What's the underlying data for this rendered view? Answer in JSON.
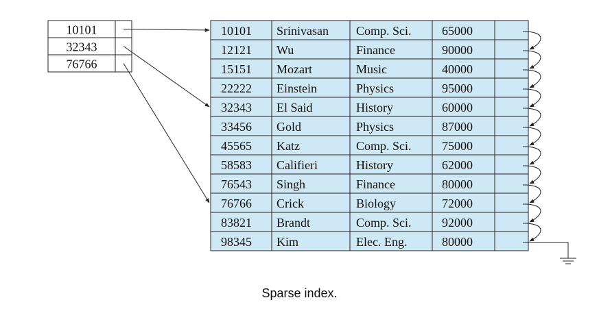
{
  "index": {
    "entries": [
      "10101",
      "32343",
      "76766"
    ]
  },
  "table": {
    "rows": [
      {
        "id": "10101",
        "name": "Srinivasan",
        "dept": "Comp. Sci.",
        "salary": "65000"
      },
      {
        "id": "12121",
        "name": "Wu",
        "dept": "Finance",
        "salary": "90000"
      },
      {
        "id": "15151",
        "name": "Mozart",
        "dept": "Music",
        "salary": "40000"
      },
      {
        "id": "22222",
        "name": "Einstein",
        "dept": "Physics",
        "salary": "95000"
      },
      {
        "id": "32343",
        "name": "El Said",
        "dept": "History",
        "salary": "60000"
      },
      {
        "id": "33456",
        "name": "Gold",
        "dept": "Physics",
        "salary": "87000"
      },
      {
        "id": "45565",
        "name": "Katz",
        "dept": "Comp. Sci.",
        "salary": "75000"
      },
      {
        "id": "58583",
        "name": "Califieri",
        "dept": "History",
        "salary": "62000"
      },
      {
        "id": "76543",
        "name": "Singh",
        "dept": "Finance",
        "salary": "80000"
      },
      {
        "id": "76766",
        "name": "Crick",
        "dept": "Biology",
        "salary": "72000"
      },
      {
        "id": "83821",
        "name": "Brandt",
        "dept": "Comp. Sci.",
        "salary": "92000"
      },
      {
        "id": "98345",
        "name": "Kim",
        "dept": "Elec. Eng.",
        "salary": "80000"
      }
    ]
  },
  "pointers": [
    {
      "from": "10101",
      "to": "10101"
    },
    {
      "from": "32343",
      "to": "32343"
    },
    {
      "from": "76766",
      "to": "76766"
    }
  ],
  "colors": {
    "table_fill": "#cfe8f6",
    "line": "#222222"
  },
  "caption": "Sparse index."
}
